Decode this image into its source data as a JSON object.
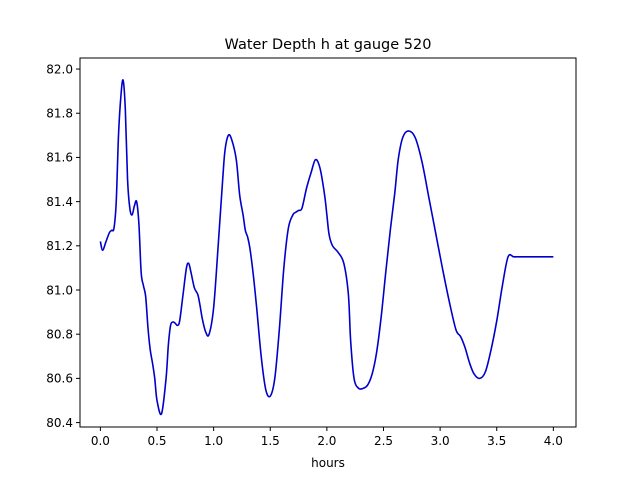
{
  "chart_data": {
    "type": "line",
    "title": "Water Depth h at gauge 520",
    "xlabel": "hours",
    "ylabel": "",
    "xlim": [
      -0.18,
      4.2
    ],
    "ylim": [
      80.38,
      82.05
    ],
    "xticks": [
      0.0,
      0.5,
      1.0,
      1.5,
      2.0,
      2.5,
      3.0,
      3.5,
      4.0
    ],
    "xtick_labels": [
      "0.0",
      "0.5",
      "1.0",
      "1.5",
      "2.0",
      "2.5",
      "3.0",
      "3.5",
      "4.0"
    ],
    "yticks": [
      80.4,
      80.6,
      80.8,
      81.0,
      81.2,
      81.4,
      81.6,
      81.8,
      82.0
    ],
    "ytick_labels": [
      "80.4",
      "80.6",
      "80.8",
      "81.0",
      "81.2",
      "81.4",
      "81.6",
      "81.8",
      "82.0"
    ],
    "grid": false,
    "legend": "none",
    "series": [
      {
        "color": "#0000cc",
        "x": [
          0.0,
          0.02,
          0.05,
          0.08,
          0.1,
          0.12,
          0.14,
          0.16,
          0.18,
          0.2,
          0.22,
          0.24,
          0.26,
          0.28,
          0.3,
          0.32,
          0.34,
          0.36,
          0.38,
          0.4,
          0.42,
          0.44,
          0.46,
          0.48,
          0.5,
          0.54,
          0.58,
          0.6,
          0.62,
          0.64,
          0.66,
          0.68,
          0.7,
          0.73,
          0.76,
          0.78,
          0.8,
          0.83,
          0.86,
          0.88,
          0.9,
          0.93,
          0.96,
          1.0,
          1.04,
          1.08,
          1.1,
          1.13,
          1.16,
          1.2,
          1.23,
          1.26,
          1.28,
          1.3,
          1.32,
          1.35,
          1.38,
          1.42,
          1.46,
          1.5,
          1.54,
          1.58,
          1.62,
          1.66,
          1.7,
          1.72,
          1.75,
          1.78,
          1.82,
          1.86,
          1.9,
          1.94,
          1.98,
          2.0,
          2.02,
          2.05,
          2.1,
          2.15,
          2.19,
          2.21,
          2.24,
          2.28,
          2.32,
          2.36,
          2.4,
          2.44,
          2.48,
          2.52,
          2.56,
          2.6,
          2.63,
          2.67,
          2.72,
          2.78,
          2.84,
          2.9,
          2.96,
          3.02,
          3.08,
          3.14,
          3.18,
          3.22,
          3.26,
          3.3,
          3.35,
          3.4,
          3.45,
          3.5,
          3.55,
          3.6,
          3.65,
          3.7,
          3.75,
          3.8,
          3.84,
          3.88,
          3.92,
          3.96,
          4.0
        ],
        "y": [
          81.22,
          81.18,
          81.22,
          81.26,
          81.27,
          81.28,
          81.4,
          81.7,
          81.87,
          81.95,
          81.82,
          81.5,
          81.37,
          81.34,
          81.38,
          81.4,
          81.3,
          81.08,
          81.02,
          80.97,
          80.83,
          80.73,
          80.67,
          80.6,
          80.5,
          80.44,
          80.6,
          80.75,
          80.84,
          80.855,
          80.85,
          80.84,
          80.86,
          80.98,
          81.1,
          81.12,
          81.08,
          81.01,
          80.98,
          80.93,
          80.87,
          80.81,
          80.8,
          80.92,
          81.2,
          81.5,
          81.63,
          81.7,
          81.68,
          81.59,
          81.43,
          81.34,
          81.27,
          81.24,
          81.19,
          81.07,
          80.92,
          80.7,
          80.55,
          80.52,
          80.6,
          80.82,
          81.1,
          81.28,
          81.34,
          81.35,
          81.36,
          81.37,
          81.46,
          81.53,
          81.59,
          81.55,
          81.43,
          81.34,
          81.25,
          81.2,
          81.17,
          81.12,
          80.98,
          80.77,
          80.6,
          80.555,
          80.555,
          80.57,
          80.62,
          80.72,
          80.88,
          81.08,
          81.27,
          81.44,
          81.59,
          81.69,
          81.72,
          81.69,
          81.58,
          81.42,
          81.26,
          81.1,
          80.95,
          80.82,
          80.79,
          80.74,
          80.67,
          80.62,
          80.6,
          80.63,
          80.73,
          80.86,
          81.02,
          81.15,
          81.15,
          81.15,
          81.15,
          81.15,
          81.15,
          81.15,
          81.15,
          81.15,
          81.15
        ]
      }
    ]
  }
}
